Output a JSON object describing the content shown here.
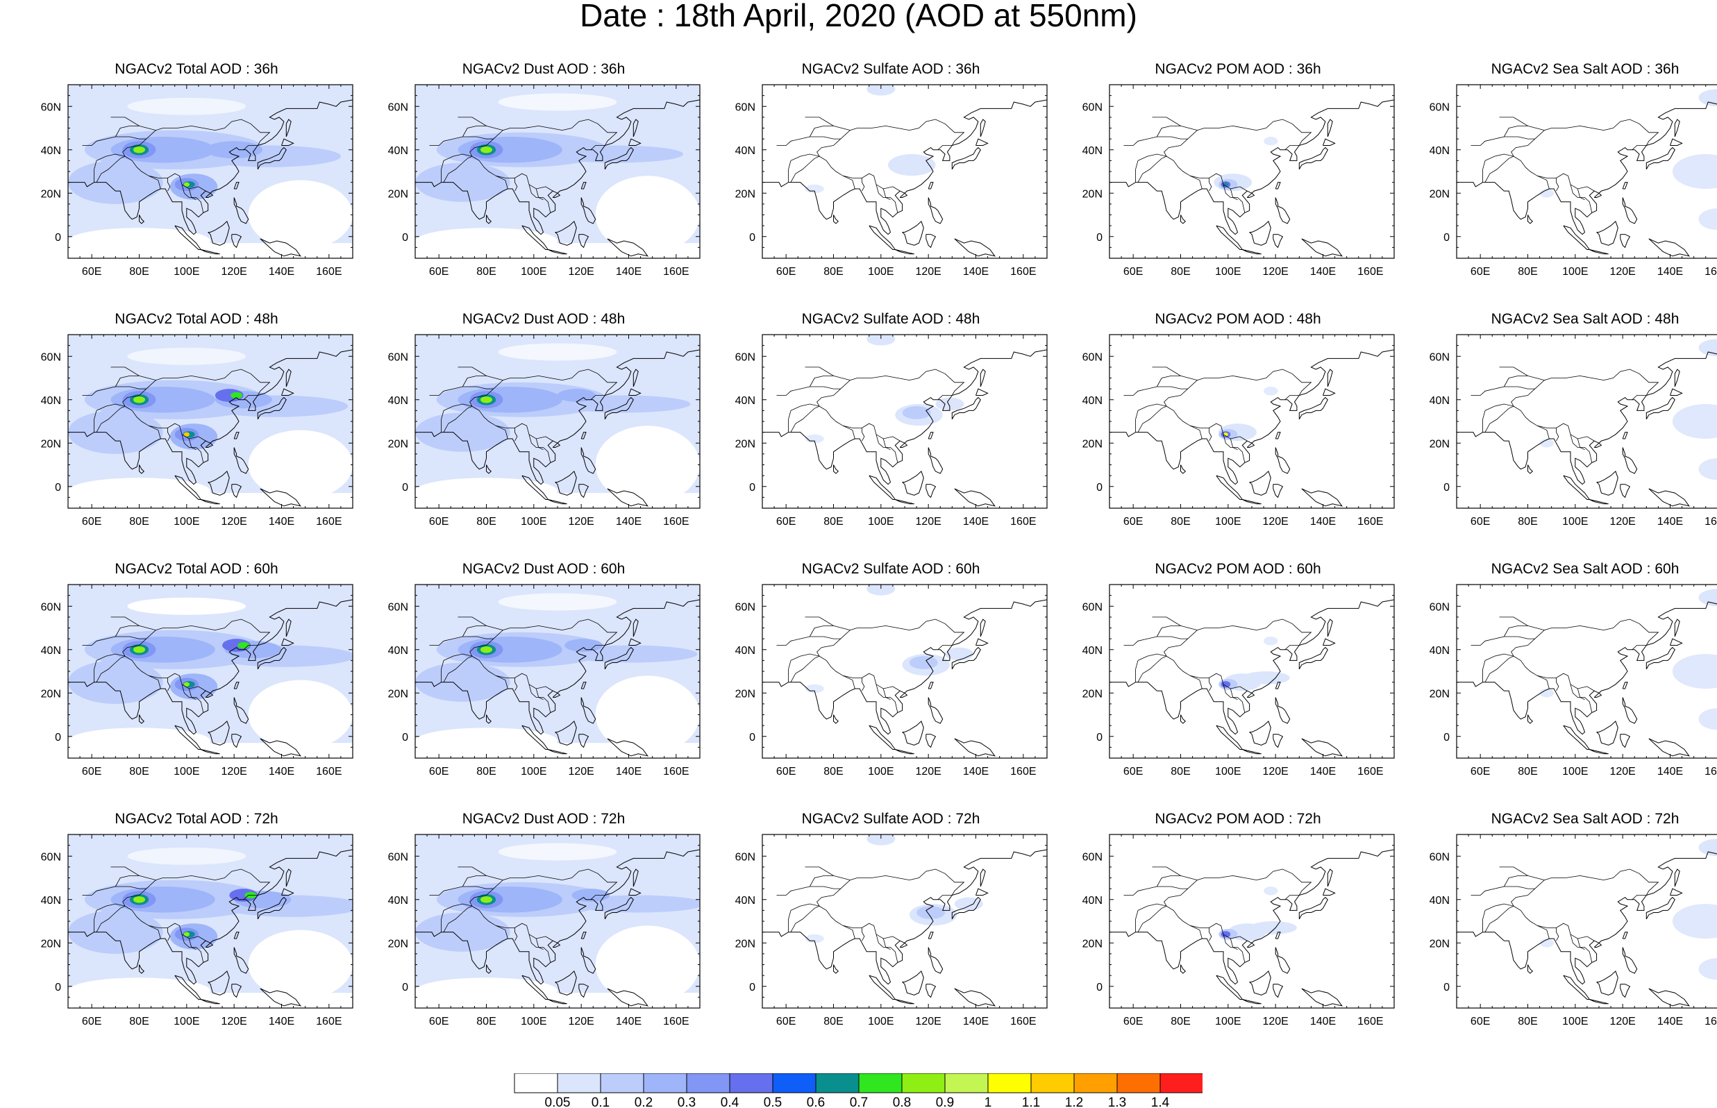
{
  "title": "Date : 18th April, 2020 (AOD at 550nm)",
  "panels": [
    {
      "title": "NGACv2 Total AOD : 36h",
      "species": "total"
    },
    {
      "title": "NGACv2 Dust AOD : 36h",
      "species": "dust"
    },
    {
      "title": "NGACv2 Sulfate AOD : 36h",
      "species": "sulfate"
    },
    {
      "title": "NGACv2 POM AOD : 36h",
      "species": "pom"
    },
    {
      "title": "NGACv2 Sea Salt AOD : 36h",
      "species": "seasalt"
    },
    {
      "title": "NGACv2 Total AOD : 48h",
      "species": "total"
    },
    {
      "title": "NGACv2 Dust AOD : 48h",
      "species": "dust"
    },
    {
      "title": "NGACv2 Sulfate AOD : 48h",
      "species": "sulfate"
    },
    {
      "title": "NGACv2 POM AOD : 48h",
      "species": "pom"
    },
    {
      "title": "NGACv2 Sea Salt AOD : 48h",
      "species": "seasalt"
    },
    {
      "title": "NGACv2 Total AOD : 60h",
      "species": "total"
    },
    {
      "title": "NGACv2 Dust AOD : 60h",
      "species": "dust"
    },
    {
      "title": "NGACv2 Sulfate AOD : 60h",
      "species": "sulfate"
    },
    {
      "title": "NGACv2 POM AOD : 60h",
      "species": "pom"
    },
    {
      "title": "NGACv2 Sea Salt AOD : 60h",
      "species": "seasalt"
    },
    {
      "title": "NGACv2 Total AOD : 72h",
      "species": "total"
    },
    {
      "title": "NGACv2 Dust AOD : 72h",
      "species": "dust"
    },
    {
      "title": "NGACv2 Sulfate AOD : 72h",
      "species": "sulfate"
    },
    {
      "title": "NGACv2 POM AOD : 72h",
      "species": "pom"
    },
    {
      "title": "NGACv2 Sea Salt  AOD : 72h",
      "species": "seasalt"
    }
  ],
  "map": {
    "lon_range": [
      50,
      170
    ],
    "lat_range": [
      -10,
      70
    ],
    "lon_ticks": [
      60,
      80,
      100,
      120,
      140,
      160
    ],
    "lon_tick_labels": [
      "60E",
      "80E",
      "100E",
      "120E",
      "140E",
      "160E"
    ],
    "lat_ticks": [
      0,
      20,
      40,
      60
    ],
    "lat_tick_labels": [
      "0",
      "20N",
      "40N",
      "60N"
    ]
  },
  "colorbar": {
    "labels": [
      "0.05",
      "0.1",
      "0.2",
      "0.3",
      "0.4",
      "0.5",
      "0.6",
      "0.7",
      "0.8",
      "0.9",
      "1",
      "1.1",
      "1.2",
      "1.3",
      "1.4"
    ],
    "colors": [
      "#ffffff",
      "#dbe5fc",
      "#bccdfb",
      "#9fb5f9",
      "#8296f5",
      "#6670ee",
      "#0f5ef8",
      "#0a8f8f",
      "#2fe61f",
      "#8fef14",
      "#c3f553",
      "#ffff00",
      "#ffcc00",
      "#ffa000",
      "#ff6e00",
      "#ff1e1e"
    ]
  }
}
